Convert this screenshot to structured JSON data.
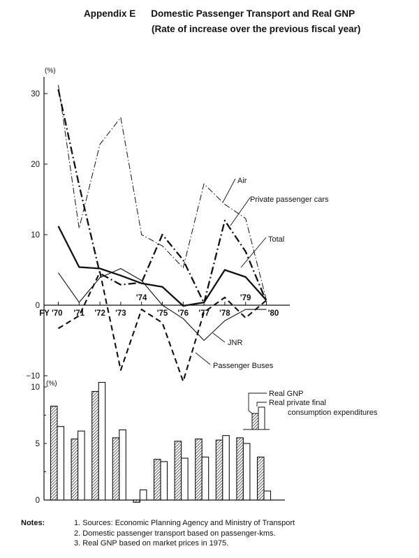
{
  "title": {
    "label": "Appendix E",
    "main": "Domestic Passenger Transport and Real GNP",
    "sub": "(Rate of increase over the previous fiscal year)"
  },
  "chart_data": [
    {
      "type": "line",
      "ylabel": "(%)",
      "ylim": [
        -10,
        32
      ],
      "yticks": [
        "30",
        "20",
        "10",
        "0",
        "−10"
      ],
      "ytick_values": [
        30,
        20,
        10,
        0,
        -10
      ],
      "x": [
        "FY '70",
        "'71",
        "'72",
        "'73",
        "'74",
        "'75",
        "'76",
        "'77",
        "'78",
        "'79",
        "'80"
      ],
      "series": [
        {
          "name": "Air",
          "style": "thin dash-dot",
          "values": [
            31.2,
            10.9,
            22.8,
            26.6,
            10.0,
            8.4,
            5.3,
            17.2,
            14.3,
            12.3,
            0.7
          ]
        },
        {
          "name": "Private passenger cars",
          "style": "thick dash-dot",
          "values": [
            30.6,
            17.0,
            4.5,
            2.9,
            3.2,
            10.0,
            6.4,
            0.3,
            12.0,
            7.6,
            0.5
          ]
        },
        {
          "name": "Total",
          "style": "thick solid",
          "values": [
            11.2,
            5.4,
            5.2,
            4.2,
            3.1,
            2.6,
            -0.1,
            0.4,
            5.0,
            4.0,
            0.7
          ]
        },
        {
          "name": "JNR",
          "style": "thin solid",
          "values": [
            4.6,
            0.4,
            3.9,
            5.2,
            3.5,
            0.0,
            -1.9,
            -5.0,
            -2.2,
            -0.6,
            -0.6
          ]
        },
        {
          "name": "Passenger Buses",
          "style": "thick dashed",
          "values": [
            -3.3,
            -1.5,
            4.7,
            -9.2,
            -0.6,
            -2.5,
            -10.8,
            -1.0,
            1.1,
            -1.8,
            0.7
          ]
        }
      ]
    },
    {
      "type": "bar",
      "ylabel": "(%)",
      "ylim": [
        0,
        10.5
      ],
      "yticks": [
        "10",
        "5",
        "0"
      ],
      "ytick_values": [
        10,
        5,
        0
      ],
      "categories": [
        "'70",
        "'71",
        "'72",
        "'73",
        "'74",
        "'75",
        "'76",
        "'77",
        "'78",
        "'79",
        "'80"
      ],
      "series": [
        {
          "name": "Real GNP",
          "pattern": "hatched",
          "values": [
            8.3,
            5.4,
            9.6,
            5.5,
            -0.2,
            3.6,
            5.2,
            5.4,
            5.3,
            5.5,
            3.8
          ]
        },
        {
          "name": "Real private final consumption expenditures",
          "pattern": "open",
          "values": [
            6.5,
            6.1,
            10.4,
            6.2,
            0.9,
            3.4,
            3.7,
            3.8,
            5.7,
            5.0,
            0.8
          ]
        }
      ],
      "legend": {
        "line1": "Real GNP",
        "line2": "Real private final",
        "line3": "consumption expenditures"
      }
    }
  ],
  "notes": {
    "label": "Notes:",
    "items": [
      "1.  Sources: Economic Planning Agency and Ministry of Transport",
      "2.  Domestic passenger transport based on passenger-kms.",
      "3.  Real GNP based on market prices in 1975."
    ]
  }
}
